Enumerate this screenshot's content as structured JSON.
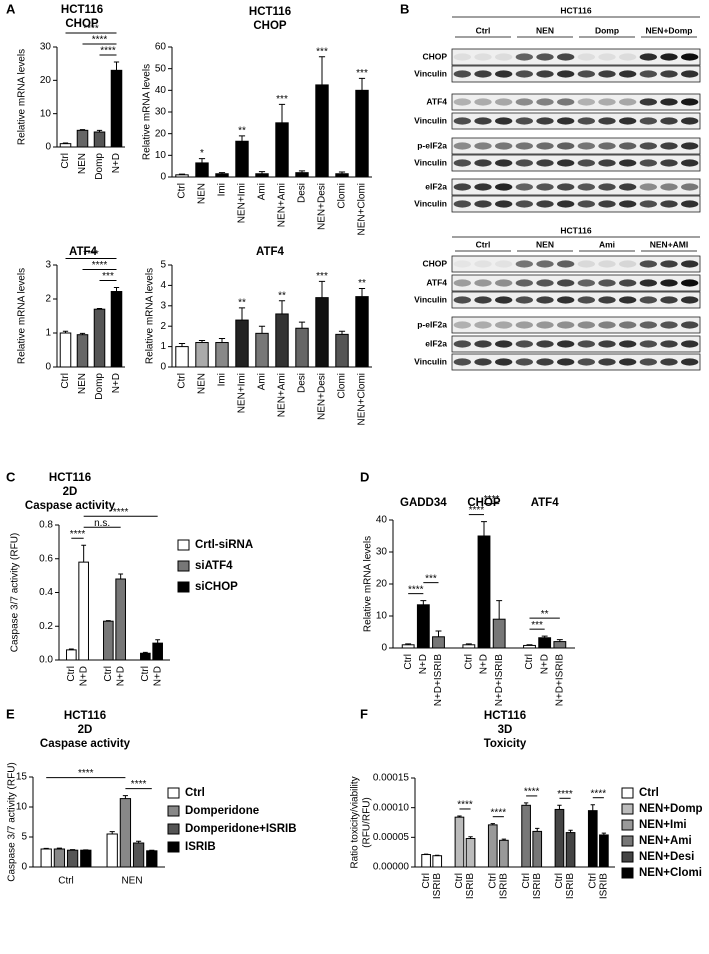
{
  "panel_labels": [
    "A",
    "B",
    "C",
    "D",
    "E",
    "F"
  ],
  "blots": [
    {
      "title": "HCT116",
      "groups": [
        "Ctrl",
        "NEN",
        "Domp",
        "NEN+Domp"
      ],
      "rows": [
        "CHOP",
        "Vinculin",
        "ATF4",
        "Vinculin",
        "p-eIF2a",
        "Vinculin",
        "eIF2a",
        "Vinculin"
      ]
    },
    {
      "title": "HCT116",
      "groups": [
        "Ctrl",
        "NEN",
        "Ami",
        "NEN+AMI"
      ],
      "rows": [
        "CHOP",
        "ATF4",
        "Vinculin",
        "p-eIF2a",
        "eIF2a",
        "Vinculin"
      ]
    }
  ],
  "chart_data": [
    {
      "type": "bar",
      "title": [
        "HCT116",
        "CHOP"
      ],
      "ylabel": "Relative mRNA levels",
      "categories": [
        "Ctrl",
        "NEN",
        "Domp",
        "N+D"
      ],
      "values": [
        1,
        5,
        4.5,
        23
      ],
      "errors": [
        0.2,
        0.2,
        0.5,
        2.5
      ],
      "colors": [
        "#ffffff",
        "#666666",
        "#555555",
        "#000000"
      ],
      "ylim": [
        0,
        30
      ],
      "yticks": [
        0,
        10,
        20,
        30
      ],
      "annotations": [
        {
          "text": "****",
          "bars": [
            0,
            3
          ]
        },
        {
          "text": "****",
          "bars": [
            1,
            3
          ]
        },
        {
          "text": "****",
          "bars": [
            2,
            3
          ]
        }
      ]
    },
    {
      "type": "bar",
      "title": [
        "HCT116",
        "CHOP"
      ],
      "ylabel": "Relative mRNA levels",
      "categories": [
        "Ctrl",
        "NEN",
        "Imi",
        "NEN+Imi",
        "Ami",
        "NEN+Ami",
        "Desi",
        "NEN+Desi",
        "Clomi",
        "NEN+Clomi"
      ],
      "values": [
        1,
        6.5,
        1.5,
        16.5,
        1.5,
        25,
        2,
        42.5,
        1.5,
        40
      ],
      "errors": [
        0.3,
        2,
        0.5,
        2.5,
        1,
        8.5,
        0.8,
        13,
        0.8,
        5.5
      ],
      "colors": [
        "#ffffff",
        "#000000",
        "#000000",
        "#000000",
        "#000000",
        "#000000",
        "#000000",
        "#000000",
        "#000000",
        "#000000"
      ],
      "ylim": [
        0,
        60
      ],
      "yticks": [
        0,
        10,
        20,
        30,
        40,
        50,
        60
      ],
      "annotations": [
        {
          "text": "*",
          "bars": [
            1
          ]
        },
        {
          "text": "**",
          "bars": [
            3
          ]
        },
        {
          "text": "***",
          "bars": [
            5
          ]
        },
        {
          "text": "***",
          "bars": [
            7
          ]
        },
        {
          "text": "***",
          "bars": [
            9
          ]
        }
      ]
    },
    {
      "type": "bar",
      "title": [
        "ATF4"
      ],
      "ylabel": "Relative mRNA levels",
      "categories": [
        "Ctrl",
        "NEN",
        "Domp",
        "N+D"
      ],
      "values": [
        1.0,
        0.95,
        1.7,
        2.22
      ],
      "errors": [
        0.05,
        0.04,
        0.02,
        0.12
      ],
      "colors": [
        "#ffffff",
        "#666666",
        "#555555",
        "#000000"
      ],
      "ylim": [
        0,
        3
      ],
      "yticks": [
        0,
        1,
        2,
        3
      ],
      "annotations": [
        {
          "text": "****",
          "bars": [
            0,
            3
          ]
        },
        {
          "text": "****",
          "bars": [
            1,
            3
          ]
        },
        {
          "text": "***",
          "bars": [
            2,
            3
          ]
        }
      ]
    },
    {
      "type": "bar",
      "title": [
        "ATF4"
      ],
      "ylabel": "Relative mRNA levels",
      "categories": [
        "Ctrl",
        "NEN",
        "Imi",
        "NEN+Imi",
        "Ami",
        "NEN+Ami",
        "Desi",
        "NEN+Desi",
        "Clomi",
        "NEN+Clomi"
      ],
      "values": [
        1,
        1.2,
        1.2,
        2.3,
        1.65,
        2.6,
        1.9,
        3.4,
        1.6,
        3.45
      ],
      "errors": [
        0.15,
        0.1,
        0.2,
        0.6,
        0.35,
        0.65,
        0.3,
        0.8,
        0.15,
        0.4
      ],
      "colors": [
        "#ffffff",
        "#aaaaaa",
        "#888888",
        "#222222",
        "#777777",
        "#333333",
        "#666666",
        "#111111",
        "#555555",
        "#000000"
      ],
      "ylim": [
        0,
        5
      ],
      "yticks": [
        0,
        1,
        2,
        3,
        4,
        5
      ],
      "annotations": [
        {
          "text": "**",
          "bars": [
            3
          ]
        },
        {
          "text": "**",
          "bars": [
            5
          ]
        },
        {
          "text": "***",
          "bars": [
            7
          ]
        },
        {
          "text": "**",
          "bars": [
            9
          ]
        }
      ]
    },
    {
      "type": "grouped_bar",
      "grouping": "series",
      "legend": "right",
      "title": [
        "HCT116",
        "2D",
        "Caspase activity"
      ],
      "ylabel": "Caspase 3/7 activity (RFU)",
      "categories": [
        "Ctrl",
        "N+D"
      ],
      "series": [
        {
          "name": "Crtl-siRNA",
          "color": "#ffffff",
          "values": [
            0.06,
            0.58
          ],
          "errors": [
            0.005,
            0.1
          ]
        },
        {
          "name": "siATF4",
          "color": "#777777",
          "values": [
            0.23,
            0.48
          ],
          "errors": [
            0.003,
            0.03
          ]
        },
        {
          "name": "siCHOP",
          "color": "#000000",
          "values": [
            0.04,
            0.1
          ],
          "errors": [
            0.005,
            0.02
          ]
        }
      ],
      "ylim": [
        0,
        0.8
      ],
      "yticks": [
        {
          "value": 0,
          "label": "0.0"
        },
        0.2,
        0.4,
        0.6,
        0.8
      ],
      "annotations": [
        {
          "text": "****",
          "bars": [
            1,
            5
          ]
        },
        {
          "text": "n.s.",
          "bars": [
            1,
            3
          ]
        },
        {
          "text": "****",
          "bars": [
            0,
            1
          ]
        }
      ]
    },
    {
      "type": "grouped_bar",
      "grouping": "series",
      "ylabel": "Relative mRNA levels",
      "categories": [
        "Ctrl",
        "N+D",
        "N+D+ISRIB"
      ],
      "colors": [
        "#ffffff",
        "#000000",
        "#777777"
      ],
      "series": [
        {
          "name": "GADD34",
          "values": [
            1,
            13.5,
            3.5
          ],
          "errors": [
            0.3,
            1.3,
            1.8
          ]
        },
        {
          "name": "CHOP",
          "values": [
            1,
            35,
            9
          ],
          "errors": [
            0.3,
            4.5,
            5.8
          ]
        },
        {
          "name": "ATF4",
          "values": [
            0.8,
            3.2,
            2
          ],
          "errors": [
            0.2,
            0.5,
            0.6
          ]
        }
      ],
      "ylim": [
        0,
        40
      ],
      "yticks": [
        0,
        10,
        20,
        30,
        40
      ],
      "annotations": [
        {
          "text": "***",
          "bars": [
            1,
            2
          ]
        },
        {
          "text": "****",
          "bars": [
            0,
            1
          ]
        },
        {
          "text": "****",
          "bars": [
            4,
            5
          ]
        },
        {
          "text": "****",
          "bars": [
            3,
            4
          ]
        },
        {
          "text": "**",
          "bars": [
            6,
            8
          ]
        },
        {
          "text": "***",
          "bars": [
            6,
            7
          ]
        }
      ]
    },
    {
      "type": "grouped_bar",
      "grouping": "categories",
      "legend": "right",
      "title": [
        "HCT116",
        "2D",
        "Caspase activity"
      ],
      "ylabel": "Caspase 3/7 activity (RFU)",
      "categories": [
        "Ctrl",
        "NEN"
      ],
      "series": [
        {
          "name": "Ctrl",
          "color": "#ffffff",
          "values": [
            3.0,
            5.5
          ],
          "errors": [
            0.1,
            0.4
          ]
        },
        {
          "name": "Domperidone",
          "color": "#888888",
          "values": [
            3.0,
            11.4
          ],
          "errors": [
            0.15,
            0.5
          ]
        },
        {
          "name": "Domperidone+ISRIB",
          "color": "#555555",
          "values": [
            2.8,
            4.0
          ],
          "errors": [
            0.1,
            0.3
          ]
        },
        {
          "name": "ISRIB",
          "color": "#000000",
          "values": [
            2.8,
            2.7
          ],
          "errors": [
            0.05,
            0.1
          ]
        }
      ],
      "ylim": [
        0,
        15
      ],
      "yticks": [
        0,
        5,
        10,
        15
      ],
      "annotations": [
        {
          "text": "****",
          "bars": [
            0,
            5
          ]
        },
        {
          "text": "****",
          "bars": [
            5,
            7
          ]
        }
      ]
    },
    {
      "type": "grouped_bar",
      "grouping": "series",
      "legend": "right",
      "title": [
        "HCT116",
        "3D",
        "Toxicity"
      ],
      "ylabel": [
        "Ratio toxicity/viability",
        "(RFU/RFU)"
      ],
      "categories": [
        "Ctrl",
        "ISRIB"
      ],
      "series": [
        {
          "name": "Ctrl",
          "color": "#ffffff",
          "values": [
            2.1e-05,
            1.9e-05
          ],
          "errors": [
            8e-07,
            8e-07
          ]
        },
        {
          "name": "NEN+Domp",
          "color": "#bbbbbb",
          "values": [
            8.4e-05,
            4.8e-05
          ],
          "errors": [
            2e-06,
            3e-06
          ]
        },
        {
          "name": "NEN+Imi",
          "color": "#999999",
          "values": [
            7.1e-05,
            4.5e-05
          ],
          "errors": [
            2e-06,
            2e-06
          ]
        },
        {
          "name": "NEN+Ami",
          "color": "#777777",
          "values": [
            0.000104,
            6e-05
          ],
          "errors": [
            4e-06,
            5e-06
          ]
        },
        {
          "name": "NEN+Desi",
          "color": "#444444",
          "values": [
            9.7e-05,
            5.8e-05
          ],
          "errors": [
            7e-06,
            4e-06
          ]
        },
        {
          "name": "NEN+Clomi",
          "color": "#000000",
          "values": [
            9.5e-05,
            5.4e-05
          ],
          "errors": [
            1e-05,
            3e-06
          ]
        }
      ],
      "ylim": [
        0,
        0.00015
      ],
      "yticks": [
        {
          "value": 0,
          "label": "0.00000"
        },
        5e-05,
        {
          "value": 0.0001,
          "label": "0.00010"
        },
        0.00015
      ],
      "annotations": [
        {
          "text": "****",
          "bars": [
            2,
            3
          ]
        },
        {
          "text": "****",
          "bars": [
            4,
            5
          ]
        },
        {
          "text": "****",
          "bars": [
            6,
            7
          ]
        },
        {
          "text": "****",
          "bars": [
            8,
            9
          ]
        },
        {
          "text": "****",
          "bars": [
            10,
            11
          ]
        }
      ]
    }
  ]
}
